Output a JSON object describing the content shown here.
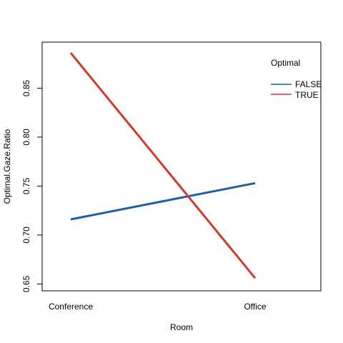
{
  "chart_data": {
    "type": "line",
    "title": "",
    "xlabel": "Room",
    "ylabel": "Optimal.Gaze.Ratio",
    "categories": [
      "Conference",
      "Office"
    ],
    "ylim": [
      0.643,
      0.897
    ],
    "yticks": [
      "0.65",
      "0.70",
      "0.75",
      "0.80",
      "0.85"
    ],
    "grid": false,
    "legend": {
      "title": "Optimal",
      "placement": "top-right",
      "entries": [
        "FALSE",
        "TRUE"
      ]
    },
    "series": [
      {
        "name": "FALSE",
        "color": "#1f5fa6",
        "values": [
          0.716,
          0.753
        ]
      },
      {
        "name": "TRUE",
        "color": "#d03a2a",
        "values": [
          0.886,
          0.656
        ]
      }
    ]
  }
}
